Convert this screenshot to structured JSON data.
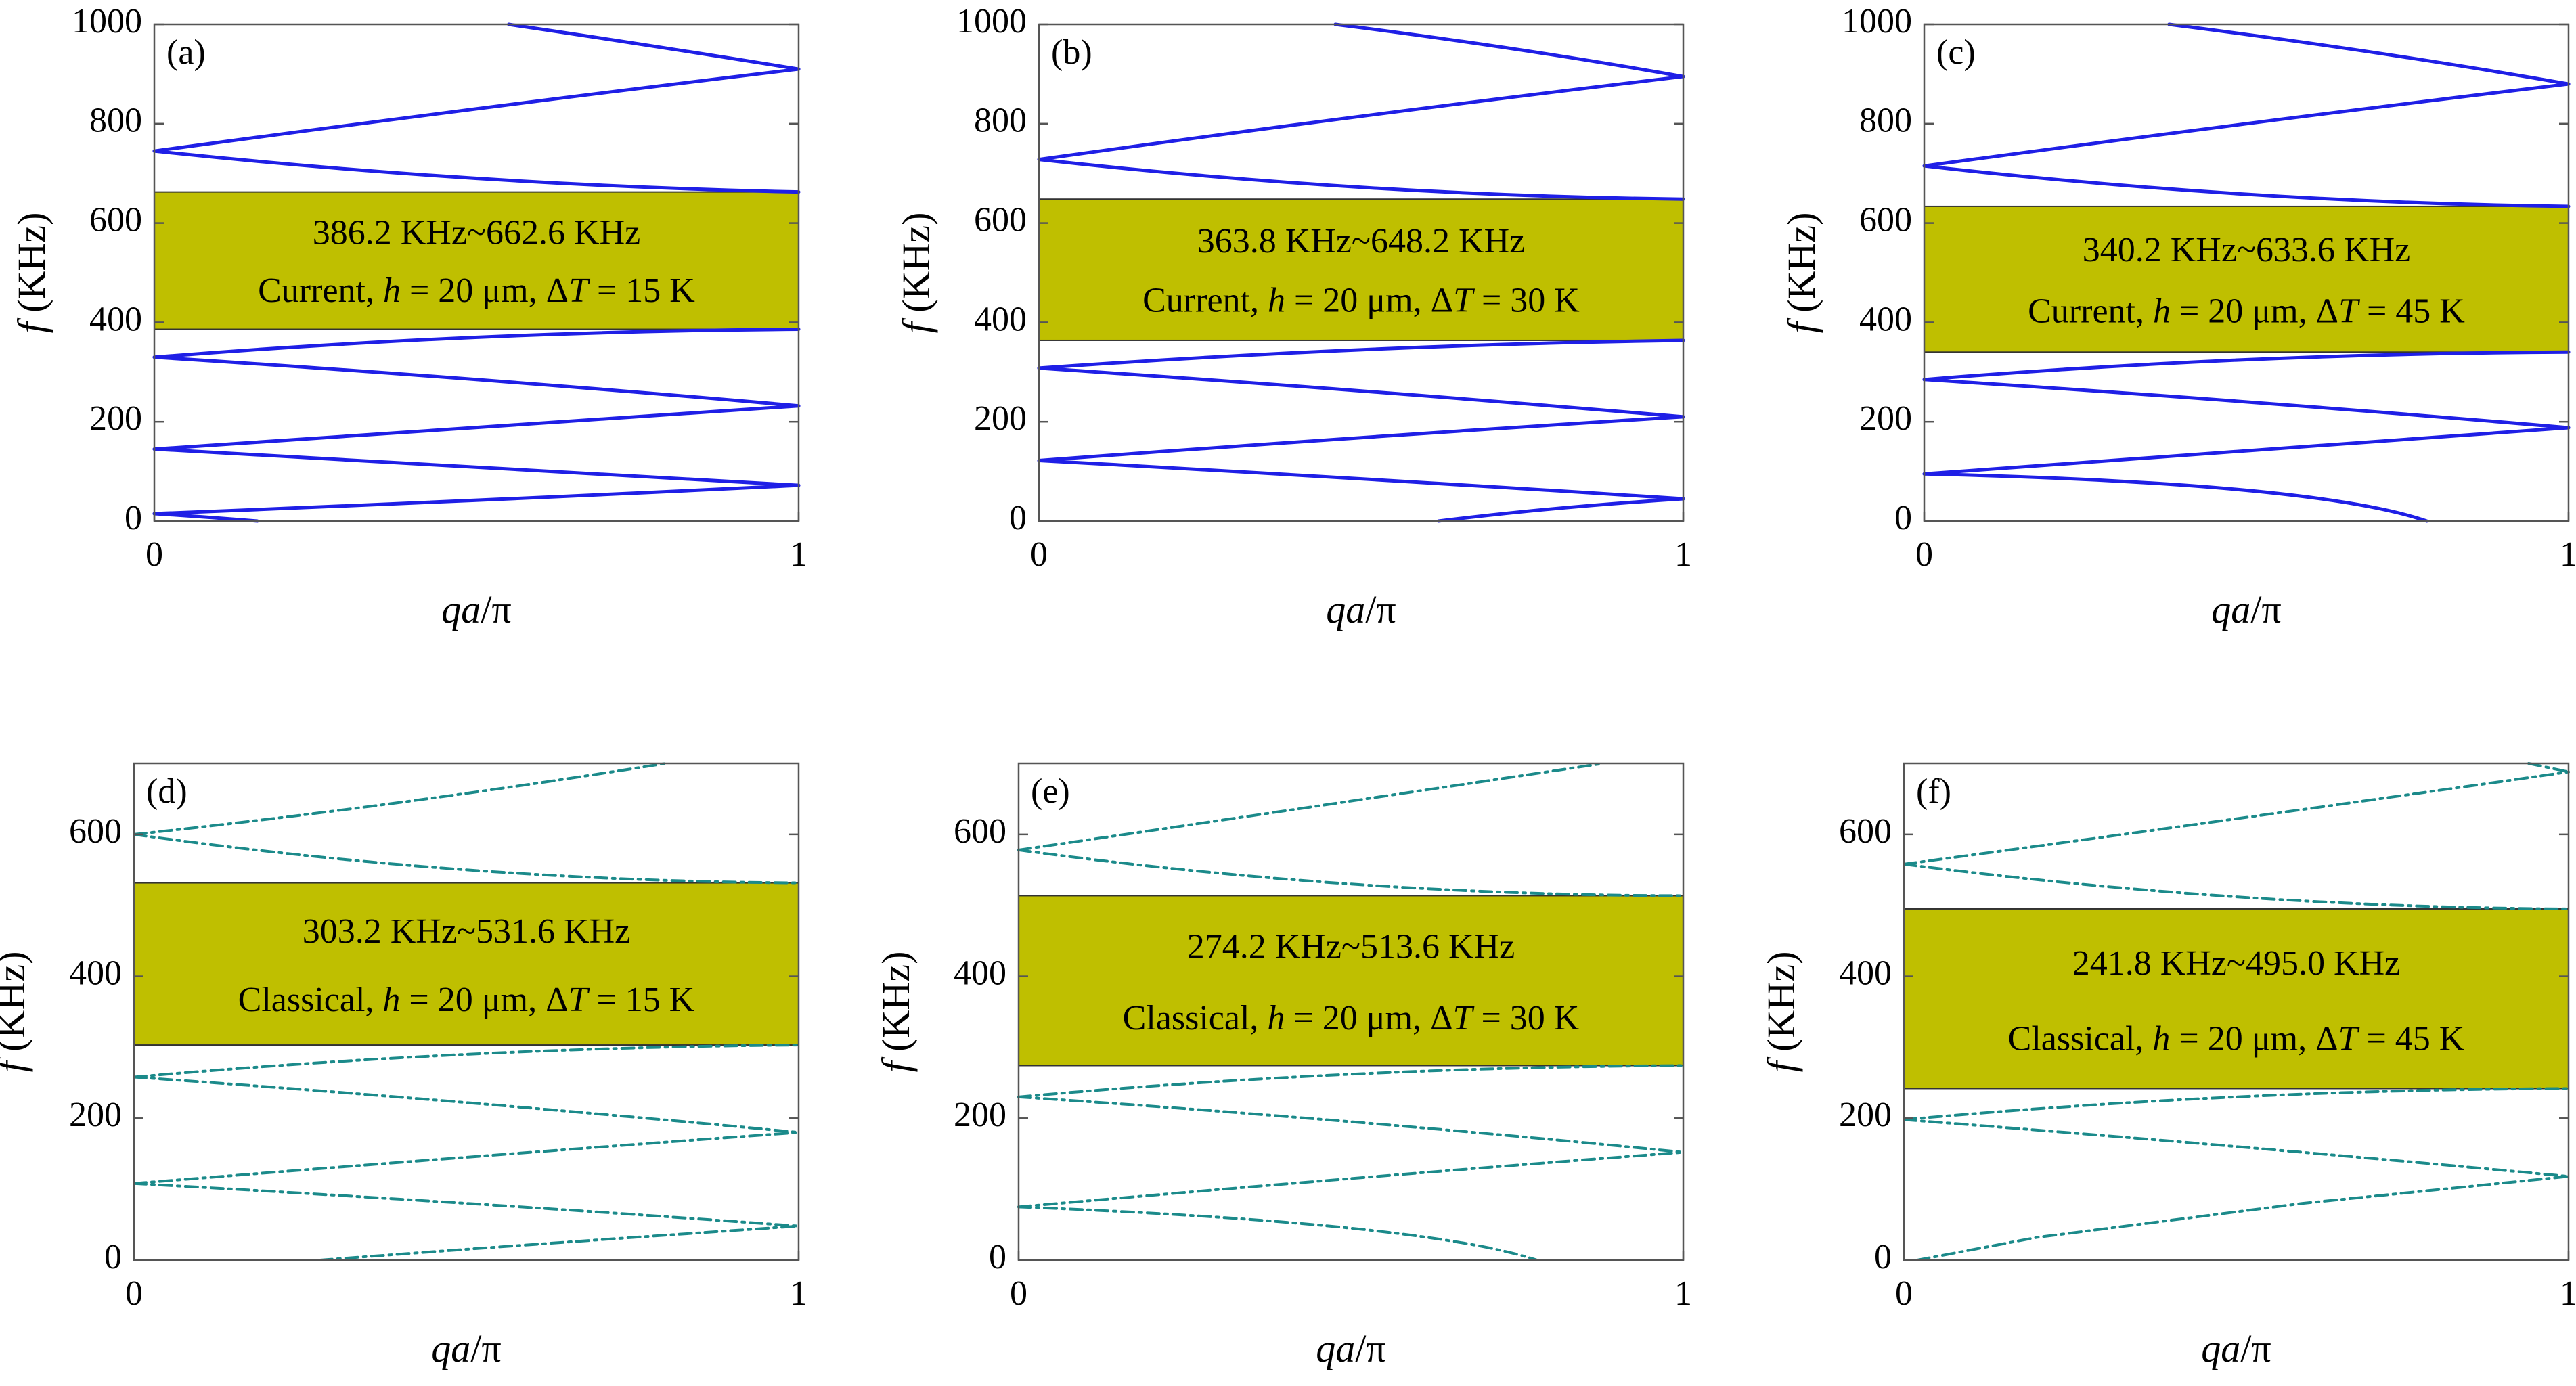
{
  "figure": {
    "band_color": "#bfbf00",
    "current_line_color": "#1f1fe6",
    "classical_line_color": "#1b8a8a"
  },
  "chart_data": [
    {
      "type": "line",
      "tag": "(a)",
      "xlabel": "qa/π",
      "ylabel": "f (KHz)",
      "xlim": [
        0,
        1
      ],
      "ylim": [
        0,
        1000
      ],
      "xticks": [
        "0",
        "1"
      ],
      "yticks": [
        0,
        200,
        400,
        600,
        800,
        1000
      ],
      "ytick_labels": [
        "0",
        "200",
        "400",
        "600",
        "800",
        "1000"
      ],
      "band": {
        "low": 386.2,
        "high": 662.6,
        "line1": "386.2 KHz~662.6 KHz",
        "line2": "Current, h = 20 μm, ΔT = 15 K"
      },
      "style": "solid",
      "series": [
        {
          "name": "branch-1",
          "x": [
            0.16,
            0.08,
            0.0
          ],
          "y": [
            0,
            8,
            15
          ]
        },
        {
          "name": "branch-2",
          "x": [
            0,
            0.5,
            1
          ],
          "y": [
            15,
            42,
            72
          ]
        },
        {
          "name": "branch-3",
          "x": [
            0,
            0.5,
            1
          ],
          "y": [
            145,
            108,
            72
          ]
        },
        {
          "name": "branch-4",
          "x": [
            0,
            0.5,
            1
          ],
          "y": [
            145,
            188,
            232
          ]
        },
        {
          "name": "branch-5",
          "x": [
            0,
            0.5,
            1
          ],
          "y": [
            330,
            285,
            232
          ]
        },
        {
          "name": "branch-6",
          "x": [
            0,
            0.5,
            1
          ],
          "y": [
            330,
            370,
            386.2
          ]
        },
        {
          "name": "branch-7",
          "x": [
            0,
            0.5,
            1
          ],
          "y": [
            745,
            690,
            662.6
          ]
        },
        {
          "name": "branch-8",
          "x": [
            0,
            0.5,
            1
          ],
          "y": [
            745,
            830,
            910
          ]
        },
        {
          "name": "branch-9",
          "x": [
            0.55,
            0.78,
            1
          ],
          "y": [
            1000,
            955,
            910
          ]
        }
      ]
    },
    {
      "type": "line",
      "tag": "(b)",
      "xlabel": "qa/π",
      "ylabel": "f (KHz)",
      "xlim": [
        0,
        1
      ],
      "ylim": [
        0,
        1000
      ],
      "xticks": [
        "0",
        "1"
      ],
      "yticks": [
        0,
        200,
        400,
        600,
        800,
        1000
      ],
      "ytick_labels": [
        "0",
        "200",
        "400",
        "600",
        "800",
        "1000"
      ],
      "band": {
        "low": 363.8,
        "high": 648.2,
        "line1": "363.8 KHz~648.2 KHz",
        "line2": "Current, h = 20 μm, ΔT = 30 K"
      },
      "style": "solid",
      "series": [
        {
          "name": "branch-1",
          "x": [
            0.62,
            0.8,
            1
          ],
          "y": [
            0,
            25,
            45
          ]
        },
        {
          "name": "branch-2",
          "x": [
            0,
            0.5,
            1
          ],
          "y": [
            122,
            85,
            45
          ]
        },
        {
          "name": "branch-3",
          "x": [
            0,
            0.5,
            1
          ],
          "y": [
            122,
            168,
            210
          ]
        },
        {
          "name": "branch-4",
          "x": [
            0,
            0.5,
            1
          ],
          "y": [
            308,
            262,
            210
          ]
        },
        {
          "name": "branch-5",
          "x": [
            0,
            0.5,
            1
          ],
          "y": [
            308,
            345,
            363.8
          ]
        },
        {
          "name": "branch-6",
          "x": [
            0,
            0.5,
            1
          ],
          "y": [
            728,
            672,
            648.2
          ]
        },
        {
          "name": "branch-7",
          "x": [
            0,
            0.5,
            1
          ],
          "y": [
            728,
            815,
            895
          ]
        },
        {
          "name": "branch-8",
          "x": [
            0.46,
            0.74,
            1
          ],
          "y": [
            1000,
            950,
            895
          ]
        }
      ]
    },
    {
      "type": "line",
      "tag": "(c)",
      "xlabel": "qa/π",
      "ylabel": "f (KHz)",
      "xlim": [
        0,
        1
      ],
      "ylim": [
        0,
        1000
      ],
      "xticks": [
        "0",
        "1"
      ],
      "yticks": [
        0,
        200,
        400,
        600,
        800,
        1000
      ],
      "ytick_labels": [
        "0",
        "200",
        "400",
        "600",
        "800",
        "1000"
      ],
      "band": {
        "low": 340.2,
        "high": 633.6,
        "line1": "340.2 KHz~633.6 KHz",
        "line2": "Current, h = 20 μm, ΔT = 45 K"
      },
      "style": "solid",
      "series": [
        {
          "name": "branch-1",
          "x": [
            0,
            0.5,
            0.78
          ],
          "y": [
            95,
            62,
            0
          ]
        },
        {
          "name": "branch-2",
          "x": [
            0,
            0.5,
            1
          ],
          "y": [
            95,
            142,
            188
          ]
        },
        {
          "name": "branch-3",
          "x": [
            0,
            0.5,
            1
          ],
          "y": [
            285,
            240,
            188
          ]
        },
        {
          "name": "branch-4",
          "x": [
            0,
            0.5,
            1
          ],
          "y": [
            285,
            325,
            340.2
          ]
        },
        {
          "name": "branch-5",
          "x": [
            0,
            0.5,
            1
          ],
          "y": [
            715,
            658,
            633.6
          ]
        },
        {
          "name": "branch-6",
          "x": [
            0,
            0.5,
            1
          ],
          "y": [
            715,
            800,
            880
          ]
        },
        {
          "name": "branch-7",
          "x": [
            0.38,
            0.7,
            1
          ],
          "y": [
            1000,
            943,
            880
          ]
        }
      ]
    },
    {
      "type": "line",
      "tag": "(d)",
      "xlabel": "qa/π",
      "ylabel": "f (KHz)",
      "xlim": [
        0,
        1
      ],
      "ylim": [
        0,
        700
      ],
      "xticks": [
        "0",
        "1"
      ],
      "yticks": [
        0,
        200,
        400,
        600
      ],
      "ytick_labels": [
        "0",
        "200",
        "400",
        "600"
      ],
      "band": {
        "low": 303.2,
        "high": 531.6,
        "line1": "303.2 KHz~531.6 KHz",
        "line2": "Classical, h = 20 μm, ΔT = 15 K"
      },
      "style": "dashdot",
      "series": [
        {
          "name": "branch-1",
          "x": [
            0.28,
            0.6,
            1
          ],
          "y": [
            0,
            22,
            48
          ]
        },
        {
          "name": "branch-2",
          "x": [
            0,
            0.5,
            1
          ],
          "y": [
            108,
            80,
            48
          ]
        },
        {
          "name": "branch-3",
          "x": [
            0,
            0.5,
            1
          ],
          "y": [
            108,
            145,
            180
          ]
        },
        {
          "name": "branch-4",
          "x": [
            0,
            0.5,
            1
          ],
          "y": [
            258,
            222,
            180
          ]
        },
        {
          "name": "branch-5",
          "x": [
            0,
            0.5,
            1
          ],
          "y": [
            258,
            290,
            303.2
          ]
        },
        {
          "name": "branch-6",
          "x": [
            0,
            0.5,
            1
          ],
          "y": [
            600,
            550,
            531.6
          ]
        },
        {
          "name": "branch-7",
          "x": [
            0,
            0.4,
            0.8
          ],
          "y": [
            600,
            645,
            700
          ]
        }
      ]
    },
    {
      "type": "line",
      "tag": "(e)",
      "xlabel": "qa/π",
      "ylabel": "f (KHz)",
      "xlim": [
        0,
        1
      ],
      "ylim": [
        0,
        700
      ],
      "xticks": [
        "0",
        "1"
      ],
      "yticks": [
        0,
        200,
        400,
        600
      ],
      "ytick_labels": [
        "0",
        "200",
        "400",
        "600"
      ],
      "band": {
        "low": 274.2,
        "high": 513.6,
        "line1": "274.2 KHz~513.6 KHz",
        "line2": "Classical, h = 20 μm, ΔT = 30 K"
      },
      "style": "dashdot",
      "series": [
        {
          "name": "branch-1",
          "x": [
            0,
            0.5,
            0.78
          ],
          "y": [
            75,
            45,
            0
          ]
        },
        {
          "name": "branch-2",
          "x": [
            0,
            0.5,
            1
          ],
          "y": [
            75,
            115,
            152
          ]
        },
        {
          "name": "branch-3",
          "x": [
            0,
            0.5,
            1
          ],
          "y": [
            230,
            195,
            152
          ]
        },
        {
          "name": "branch-4",
          "x": [
            0,
            0.5,
            1
          ],
          "y": [
            230,
            262,
            274.2
          ]
        },
        {
          "name": "branch-5",
          "x": [
            0,
            0.5,
            1
          ],
          "y": [
            578,
            530,
            513.6
          ]
        },
        {
          "name": "branch-6",
          "x": [
            0,
            0.45,
            0.88
          ],
          "y": [
            578,
            640,
            700
          ]
        }
      ]
    },
    {
      "type": "line",
      "tag": "(f)",
      "xlabel": "qa/π",
      "ylabel": "f (KHz)",
      "xlim": [
        0,
        1
      ],
      "ylim": [
        0,
        700
      ],
      "xticks": [
        "0",
        "1"
      ],
      "yticks": [
        0,
        200,
        400,
        600
      ],
      "ytick_labels": [
        "0",
        "200",
        "400",
        "600"
      ],
      "band": {
        "low": 241.8,
        "high": 495.0,
        "line1": "241.8 KHz~495.0 KHz",
        "line2": "Classical, h = 20 μm, ΔT = 45 K"
      },
      "style": "dashdot",
      "series": [
        {
          "name": "branch-1",
          "x": [
            0.02,
            0.2,
            0.6,
            1
          ],
          "y": [
            0,
            32,
            80,
            118
          ]
        },
        {
          "name": "branch-2",
          "x": [
            0,
            0.5,
            1
          ],
          "y": [
            198,
            160,
            118
          ]
        },
        {
          "name": "branch-3",
          "x": [
            0,
            0.5,
            1
          ],
          "y": [
            198,
            230,
            241.8
          ]
        },
        {
          "name": "branch-4",
          "x": [
            0,
            0.5,
            1
          ],
          "y": [
            558,
            512,
            495
          ]
        },
        {
          "name": "branch-5",
          "x": [
            0,
            0.5,
            1
          ],
          "y": [
            558,
            622,
            688
          ]
        },
        {
          "name": "branch-6",
          "x": [
            0.94,
            0.97,
            1
          ],
          "y": [
            700,
            694,
            688
          ]
        }
      ]
    }
  ]
}
